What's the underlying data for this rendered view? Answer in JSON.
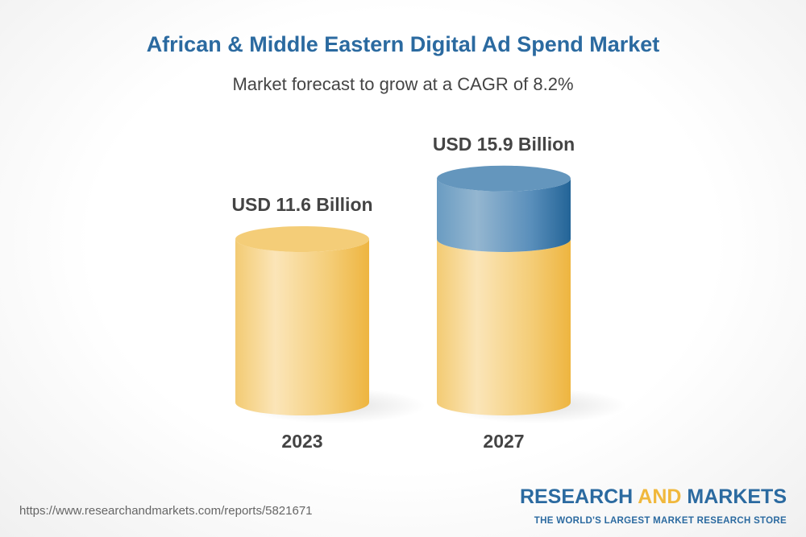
{
  "title": "African & Middle Eastern Digital Ad Spend Market",
  "subtitle": "Market forecast to grow at a CAGR of 8.2%",
  "footer": {
    "url": "https://www.researchandmarkets.com/reports/5821671",
    "logo_part1": "RESEARCH ",
    "logo_part2": "AND",
    "logo_part3": " MARKETS",
    "tagline": "THE WORLD'S LARGEST MARKET RESEARCH STORE"
  },
  "chart_data": {
    "type": "bar",
    "title": "African & Middle Eastern Digital Ad Spend Market",
    "subtitle": "Market forecast to grow at a CAGR of 8.2%",
    "categories": [
      "2023",
      "2027"
    ],
    "values": [
      11.6,
      15.9
    ],
    "unit": "USD Billion",
    "data_labels": [
      "USD 11.6 Billion",
      "USD 15.9 Billion"
    ],
    "colors": {
      "base": "#f2c262",
      "growth": "#4a84b4"
    }
  }
}
